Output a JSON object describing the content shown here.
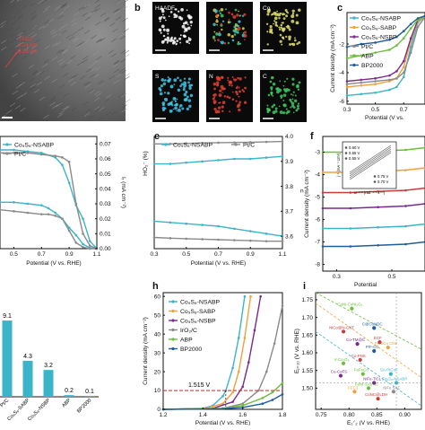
{
  "figure": {
    "panel_letters": [
      "b",
      "c",
      "e",
      "f",
      "h",
      "i"
    ],
    "tem_labels": [
      "(311)",
      "0.24 nm",
      "0.28 nm"
    ],
    "map_labels": [
      "HAADF",
      "Co",
      "S",
      "N",
      "C"
    ]
  },
  "colors": {
    "teal": "#3cb4c8",
    "orange": "#f0a03c",
    "purple": "#7a2a8c",
    "gray": "#8a8a8a",
    "green": "#6abf3c",
    "blue": "#1f5c9c",
    "red": "#c83c3c"
  },
  "chart_data": [
    {
      "id": "c",
      "type": "line",
      "ylabel": "Current density (mA cm⁻²)",
      "xlabel": "Potential (V vs.",
      "xticks": [
        "0.3",
        "0.5",
        "0.7"
      ],
      "yticks": [
        "-2",
        "-4",
        "-6"
      ],
      "xlim": [
        0.3,
        0.85
      ],
      "ylim": [
        -6.2,
        0.2
      ],
      "series": [
        {
          "name": "Co₉S₈-NSABP",
          "color": "#3cb4c8",
          "x": [
            0.3,
            0.4,
            0.5,
            0.6,
            0.65,
            0.7,
            0.75,
            0.8,
            0.85
          ],
          "y": [
            -5.6,
            -5.5,
            -5.4,
            -5.2,
            -5.0,
            -4.3,
            -2.2,
            -0.5,
            -0.05
          ]
        },
        {
          "name": "Co₉S₈-SABP",
          "color": "#f0a03c",
          "x": [
            0.3,
            0.4,
            0.5,
            0.6,
            0.65,
            0.7,
            0.75,
            0.8,
            0.85
          ],
          "y": [
            -5.0,
            -4.9,
            -4.8,
            -4.6,
            -4.4,
            -3.6,
            -1.8,
            -0.4,
            -0.05
          ]
        },
        {
          "name": "Co₉S₈-NSBP",
          "color": "#7a2a8c",
          "x": [
            0.3,
            0.4,
            0.5,
            0.6,
            0.65,
            0.7,
            0.75,
            0.8,
            0.85
          ],
          "y": [
            -4.6,
            -4.5,
            -4.4,
            -4.2,
            -3.9,
            -3.2,
            -1.6,
            -0.3,
            -0.05
          ]
        },
        {
          "name": "Pt/C",
          "color": "#8a8a8a",
          "x": [
            0.3,
            0.4,
            0.5,
            0.6,
            0.65,
            0.7,
            0.75,
            0.8,
            0.85
          ],
          "y": [
            -4.8,
            -4.7,
            -4.6,
            -4.5,
            -4.4,
            -4.0,
            -2.6,
            -0.8,
            -0.1
          ]
        },
        {
          "name": "ABP",
          "color": "#6abf3c",
          "x": [
            0.3,
            0.4,
            0.5,
            0.6,
            0.65,
            0.7,
            0.75,
            0.8,
            0.85
          ],
          "y": [
            -3.0,
            -2.8,
            -2.6,
            -2.4,
            -2.1,
            -1.6,
            -0.9,
            -0.3,
            -0.05
          ]
        },
        {
          "name": "BP2000",
          "color": "#1f5c9c",
          "x": [
            0.3,
            0.4,
            0.5,
            0.6,
            0.65,
            0.7,
            0.75,
            0.8,
            0.85
          ],
          "y": [
            -2.2,
            -2.0,
            -1.9,
            -1.7,
            -1.5,
            -1.1,
            -0.6,
            -0.2,
            -0.03
          ]
        }
      ]
    },
    {
      "id": "d",
      "type": "line",
      "xlabel": "Potential (V vs. RHE)",
      "y2label": "Iᵣ (mA cm⁻²)",
      "xticks": [
        "0.5",
        "0.7",
        "0.9",
        "1.1"
      ],
      "y2ticks": [
        "0.00",
        "0.01",
        "0.02",
        "0.03",
        "0.04",
        "0.05",
        "0.06",
        "0.07"
      ],
      "xlim": [
        0.4,
        1.1
      ],
      "ylim": [
        0,
        0.075
      ],
      "series": [
        {
          "name": "Co₉S₈-NSABP",
          "color": "#3cb4c8",
          "x": [
            0.4,
            0.5,
            0.6,
            0.7,
            0.75,
            0.8,
            0.85,
            0.9,
            0.95,
            1.0,
            1.05,
            1.1
          ],
          "y": [
            0.031,
            0.031,
            0.03,
            0.029,
            0.027,
            0.024,
            0.02,
            0.014,
            0.009,
            0.003,
            0.0005,
            0.0
          ]
        },
        {
          "name": "Pt/C",
          "color": "#8a8a8a",
          "x": [
            0.4,
            0.5,
            0.6,
            0.7,
            0.75,
            0.8,
            0.85,
            0.9,
            0.95,
            1.0,
            1.05,
            1.1
          ],
          "y": [
            0.026,
            0.025,
            0.024,
            0.023,
            0.023,
            0.022,
            0.02,
            0.012,
            0.004,
            0.001,
            0.0,
            0.0
          ]
        },
        {
          "name": "Co₉S₈-NSABP disk",
          "color": "#3cb4c8",
          "x": [
            0.4,
            0.5,
            0.6,
            0.7,
            0.8,
            0.85,
            0.9,
            0.95,
            1.0,
            1.05,
            1.1
          ],
          "y": [
            0.066,
            0.066,
            0.065,
            0.064,
            0.061,
            0.056,
            0.044,
            0.029,
            0.02,
            0.005,
            0.0
          ]
        },
        {
          "name": "Pt/C disk",
          "color": "#8a8a8a",
          "x": [
            0.4,
            0.5,
            0.6,
            0.7,
            0.8,
            0.85,
            0.9,
            0.95,
            1.0,
            1.05,
            1.1
          ],
          "y": [
            0.064,
            0.064,
            0.064,
            0.063,
            0.062,
            0.061,
            0.058,
            0.03,
            0.01,
            0.002,
            0.0
          ]
        }
      ]
    },
    {
      "id": "e",
      "type": "line",
      "ylabel": "HO₂⁻ (%)",
      "y2label": "n",
      "xlabel": "Potential (V vs. RHE)",
      "xticks": [
        "0.3",
        "0.5",
        "0.7",
        "0.9",
        "1.1"
      ],
      "y2ticks": [
        "3.6",
        "3.7",
        "3.8",
        "3.9",
        "4.0"
      ],
      "xlim": [
        0.3,
        1.1
      ],
      "ylim": [
        3.55,
        4.0
      ],
      "series": [
        {
          "name": "Co₉S₈-NSABP",
          "color": "#3cb4c8",
          "x": [
            0.3,
            0.4,
            0.5,
            0.6,
            0.7,
            0.8,
            0.9,
            1.0,
            1.1
          ],
          "y": [
            3.89,
            3.89,
            3.895,
            3.9,
            3.905,
            3.91,
            3.91,
            3.915,
            3.92
          ]
        },
        {
          "name": "Pt/C",
          "color": "#8a8a8a",
          "x": [
            0.3,
            0.4,
            0.5,
            0.6,
            0.7,
            0.8,
            0.9,
            1.0,
            1.1
          ],
          "y": [
            3.97,
            3.97,
            3.972,
            3.974,
            3.975,
            3.976,
            3.977,
            3.978,
            3.98
          ]
        },
        {
          "name": "Co₉S₈-NSABP HO2",
          "color": "#3cb4c8",
          "x": [
            0.3,
            0.4,
            0.5,
            0.6,
            0.7,
            0.8,
            0.9,
            1.0,
            1.1
          ],
          "y": [
            3.66,
            3.655,
            3.65,
            3.645,
            3.64,
            3.63,
            3.62,
            3.61,
            3.6
          ]
        },
        {
          "name": "Pt/C HO2",
          "color": "#8a8a8a",
          "x": [
            0.3,
            0.4,
            0.5,
            0.6,
            0.7,
            0.8,
            0.9,
            1.0,
            1.1
          ],
          "y": [
            3.595,
            3.592,
            3.59,
            3.588,
            3.586,
            3.584,
            3.582,
            3.58,
            3.58
          ]
        }
      ]
    },
    {
      "id": "f",
      "type": "line",
      "ylabel": "Current density (mA cm⁻²)",
      "xlabel": "Potential",
      "xticks": [
        "0.3",
        "0.5"
      ],
      "yticks": [
        "-3",
        "-4",
        "-5",
        "-6",
        "-7",
        "-8"
      ],
      "xlim": [
        0.25,
        0.62
      ],
      "ylim": [
        -8.3,
        -2.3
      ],
      "inset": {
        "ylabel": "j⁻¹ (mA⁻¹ cm²)",
        "xlabel": "ω⁻¹ᐟ² (rad⁻¹ᐟ² s¹ᐟ²)",
        "legend": [
          "0.60 V",
          "0.65 V",
          "0.55 V",
          "0.75 V",
          "0.70 V"
        ]
      },
      "series": [
        {
          "name": "400 rpm",
          "color": "#6abf3c",
          "x": [
            0.25,
            0.35,
            0.45,
            0.55,
            0.62
          ],
          "y": [
            -3.0,
            -3.0,
            -2.95,
            -2.9,
            -2.8
          ]
        },
        {
          "name": "625 rpm",
          "color": "#f0a03c",
          "x": [
            0.25,
            0.35,
            0.45,
            0.55,
            0.62
          ],
          "y": [
            -3.9,
            -3.9,
            -3.85,
            -3.8,
            -3.7
          ]
        },
        {
          "name": "900 rpm",
          "color": "#c83c3c",
          "x": [
            0.25,
            0.35,
            0.45,
            0.55,
            0.62
          ],
          "y": [
            -4.8,
            -4.8,
            -4.75,
            -4.7,
            -4.6
          ]
        },
        {
          "name": "1225 rpm",
          "color": "#7a2a8c",
          "x": [
            0.25,
            0.35,
            0.45,
            0.55,
            0.62
          ],
          "y": [
            -5.5,
            -5.5,
            -5.45,
            -5.4,
            -5.3
          ]
        },
        {
          "name": "1600 rpm",
          "color": "#3cb4c8",
          "x": [
            0.25,
            0.35,
            0.45,
            0.55,
            0.62
          ],
          "y": [
            -6.4,
            -6.4,
            -6.35,
            -6.3,
            -6.2
          ]
        },
        {
          "name": "2025 rpm",
          "color": "#1f5c9c",
          "x": [
            0.25,
            0.35,
            0.45,
            0.55,
            0.62
          ],
          "y": [
            -7.2,
            -7.2,
            -7.15,
            -7.1,
            -7.0
          ]
        }
      ]
    },
    {
      "id": "g",
      "type": "bar",
      "categories": [
        "Pt/C",
        "Co₉S₈-SABP",
        "Co₉S₈-NSBP",
        "ABP",
        "BP2000"
      ],
      "values": [
        9.1,
        4.3,
        3.2,
        0.2,
        0.1
      ],
      "labels": [
        "9.1",
        "4.3",
        "3.2",
        "0.2",
        "0.1"
      ],
      "ylim": [
        0,
        12
      ],
      "color": "#3cb4c8"
    },
    {
      "id": "h",
      "type": "line",
      "ylabel": "Current density (mA cm⁻²)",
      "xlabel": "Potential (V vs. RHE)",
      "xticks": [
        "1.2",
        "1.4",
        "1.6",
        "1.8"
      ],
      "yticks": [
        "0",
        "10",
        "20",
        "30",
        "40",
        "50",
        "60"
      ],
      "xlim": [
        1.2,
        1.8
      ],
      "ylim": [
        0,
        62
      ],
      "annotation": "1.515 V",
      "threshold": 10,
      "series": [
        {
          "name": "Co₉S₈-NSABP",
          "color": "#3cb4c8",
          "x": [
            1.2,
            1.4,
            1.45,
            1.5,
            1.515,
            1.55,
            1.58,
            1.61
          ],
          "y": [
            0,
            0.5,
            2,
            7,
            10,
            22,
            38,
            60
          ]
        },
        {
          "name": "Co₉S₈-SABP",
          "color": "#f0a03c",
          "x": [
            1.2,
            1.4,
            1.5,
            1.55,
            1.58,
            1.61,
            1.64
          ],
          "y": [
            0,
            0.3,
            3,
            9,
            20,
            38,
            60
          ]
        },
        {
          "name": "Co₉S₈-NSBP",
          "color": "#7a2a8c",
          "x": [
            1.2,
            1.45,
            1.55,
            1.6,
            1.63,
            1.66,
            1.69
          ],
          "y": [
            0,
            0.5,
            4,
            12,
            25,
            42,
            60
          ]
        },
        {
          "name": "IrO₂/C",
          "color": "#8a8a8a",
          "x": [
            1.2,
            1.5,
            1.6,
            1.68,
            1.72,
            1.76,
            1.8
          ],
          "y": [
            0,
            0.5,
            3,
            10,
            20,
            35,
            55
          ]
        },
        {
          "name": "ABP",
          "color": "#6abf3c",
          "x": [
            1.2,
            1.5,
            1.6,
            1.7,
            1.75,
            1.8
          ],
          "y": [
            0,
            0.5,
            2,
            6,
            9,
            14
          ]
        },
        {
          "name": "BP2000",
          "color": "#1f5c9c",
          "x": [
            1.2,
            1.5,
            1.6,
            1.7,
            1.75,
            1.8
          ],
          "y": [
            0,
            0.3,
            1,
            3,
            5,
            8
          ]
        }
      ]
    },
    {
      "id": "i",
      "type": "scatter",
      "xlabel": "E₁ᐟ₂ (V vs. RHE)",
      "ylabel": "Eⱼ₌₁₀ (V vs. RHE)",
      "xticks": [
        "0.75",
        "0.80",
        "0.85",
        "0.90"
      ],
      "yticks": [
        "1.50",
        "1.55",
        "1.60",
        "1.65",
        "1.70",
        "1.75"
      ],
      "xlim": [
        0.74,
        0.93
      ],
      "ylim": [
        1.44,
        1.77
      ],
      "points": [
        {
          "label": "CoNC@LDH",
          "x": 0.852,
          "y": 1.47,
          "color": "#c83c3c"
        },
        {
          "label": "CFC3",
          "x": 0.81,
          "y": 1.49,
          "color": "#f0a03c"
        },
        {
          "label": "FeNi SAs/NC",
          "x": 0.835,
          "y": 1.5,
          "color": "#6abf3c"
        },
        {
          "label": "NiFe SAC",
          "x": 0.88,
          "y": 1.49,
          "color": "#8a8a8a"
        },
        {
          "label": "NiFe-TiCL",
          "x": 0.845,
          "y": 1.515,
          "color": "#7a2a8c"
        },
        {
          "label": "Cu-CoFS",
          "x": 0.785,
          "y": 1.535,
          "color": "#7a2a8c"
        },
        {
          "label": "FeFeCo",
          "x": 0.825,
          "y": 1.54,
          "color": "#6abf3c"
        },
        {
          "label": "SA-PtCoF",
          "x": 0.875,
          "y": 1.54,
          "color": "#3cb4c8"
        },
        {
          "label": "V-Co₂O₄",
          "x": 0.79,
          "y": 1.57,
          "color": "#6abf3c"
        },
        {
          "label": "Co-PNS",
          "x": 0.82,
          "y": 1.58,
          "color": "#c83c3c"
        },
        {
          "label": "P/F-CC",
          "x": 0.845,
          "y": 1.605,
          "color": "#1f5c9c"
        },
        {
          "label": "FeNiCo CNF",
          "x": 0.87,
          "y": 1.615,
          "color": "#f0a03c"
        },
        {
          "label": "Co-TM@C",
          "x": 0.815,
          "y": 1.625,
          "color": "#7a2a8c"
        },
        {
          "label": "ECF",
          "x": 0.855,
          "y": 1.63,
          "color": "#c83c3c"
        },
        {
          "label": "NiCo@N-CNT",
          "x": 0.79,
          "y": 1.66,
          "color": "#c83c3c"
        },
        {
          "label": "C@CoNDC",
          "x": 0.845,
          "y": 1.67,
          "color": "#1f5c9c"
        },
        {
          "label": "CoNi-CoNi₂O₄",
          "x": 0.805,
          "y": 1.725,
          "color": "#6abf3c"
        },
        {
          "label": "Co₉S₈-NSABP",
          "x": 0.885,
          "y": 1.515,
          "color": "#3cb4c8"
        }
      ]
    }
  ]
}
